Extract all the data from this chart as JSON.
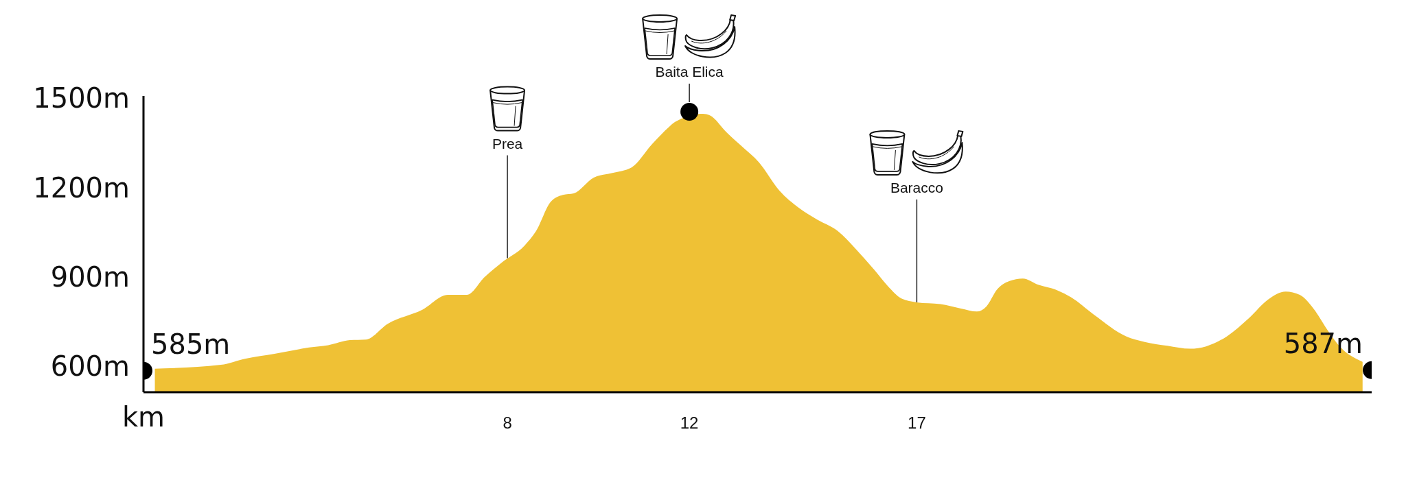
{
  "chart_data": {
    "type": "area",
    "xlabel": "km",
    "x": [
      0.25,
      0.45,
      1.7,
      2.25,
      2.88,
      3.64,
      4.06,
      4.54,
      4.89,
      5.37,
      6.13,
      6.69,
      7.11,
      7.5,
      7.87,
      8.38,
      8.63,
      8.95,
      9.22,
      9.46,
      9.9,
      10.29,
      10.73,
      11.18,
      11.56,
      11.7,
      12.3,
      12.45,
      12.83,
      13.21,
      13.52,
      13.98,
      14.41,
      14.81,
      15.26,
      15.66,
      16.06,
      16.36,
      16.66,
      17,
      17.52,
      17.97,
      18.32,
      18.53,
      18.77,
      19.03,
      19.33,
      19.67,
      20.09,
      20.39,
      20.89,
      21.6,
      22.01,
      22.51,
      23.01,
      23.36,
      23.82,
      24.31,
      24.72,
      25.11,
      25.42,
      25.72,
      26.02,
      26.32,
      26.66,
      26.8
    ],
    "xlim": [
      0,
      27
    ],
    "xticks": [
      8,
      12,
      17
    ],
    "ylim": [
      513,
      1508
    ],
    "yticks": [
      {
        "value": 600,
        "label": "600m"
      },
      {
        "value": 900,
        "label": "900m"
      },
      {
        "value": 1200,
        "label": "1200m"
      },
      {
        "value": 1500,
        "label": "1500m"
      }
    ],
    "series": [
      {
        "color": "#efc135",
        "values": [
          592,
          593,
          605,
          626,
          642,
          663,
          671,
          688,
          690,
          743,
          790,
          840,
          840,
          900,
          948,
          1006,
          1054,
          1152,
          1176,
          1181,
          1234,
          1249,
          1268,
          1346,
          1405,
          1422,
          1448,
          1443,
          1384,
          1331,
          1287,
          1190,
          1132,
          1093,
          1055,
          994,
          925,
          870,
          828,
          815,
          809,
          794,
          784,
          801,
          859,
          886,
          895,
          874,
          855,
          832,
          774,
          701,
          682,
          669,
          659,
          667,
          701,
          763,
          824,
          851,
          840,
          794,
          724,
          663,
          625,
          615
        ]
      },
      {
        "type": "scatter",
        "color": "#000000",
        "marker": "circle",
        "x": [
          0,
          12,
          27
        ],
        "values": [
          585,
          1455,
          587
        ],
        "value_labels": [
          "585m",
          null,
          "587m"
        ]
      }
    ],
    "annotations": [
      {
        "text": "Prea",
        "x": 8,
        "y": 963
      },
      {
        "text": "Baita Elica",
        "x": 12,
        "y": 1455
      },
      {
        "text": "Baracco",
        "x": 17,
        "y": 815
      }
    ]
  }
}
